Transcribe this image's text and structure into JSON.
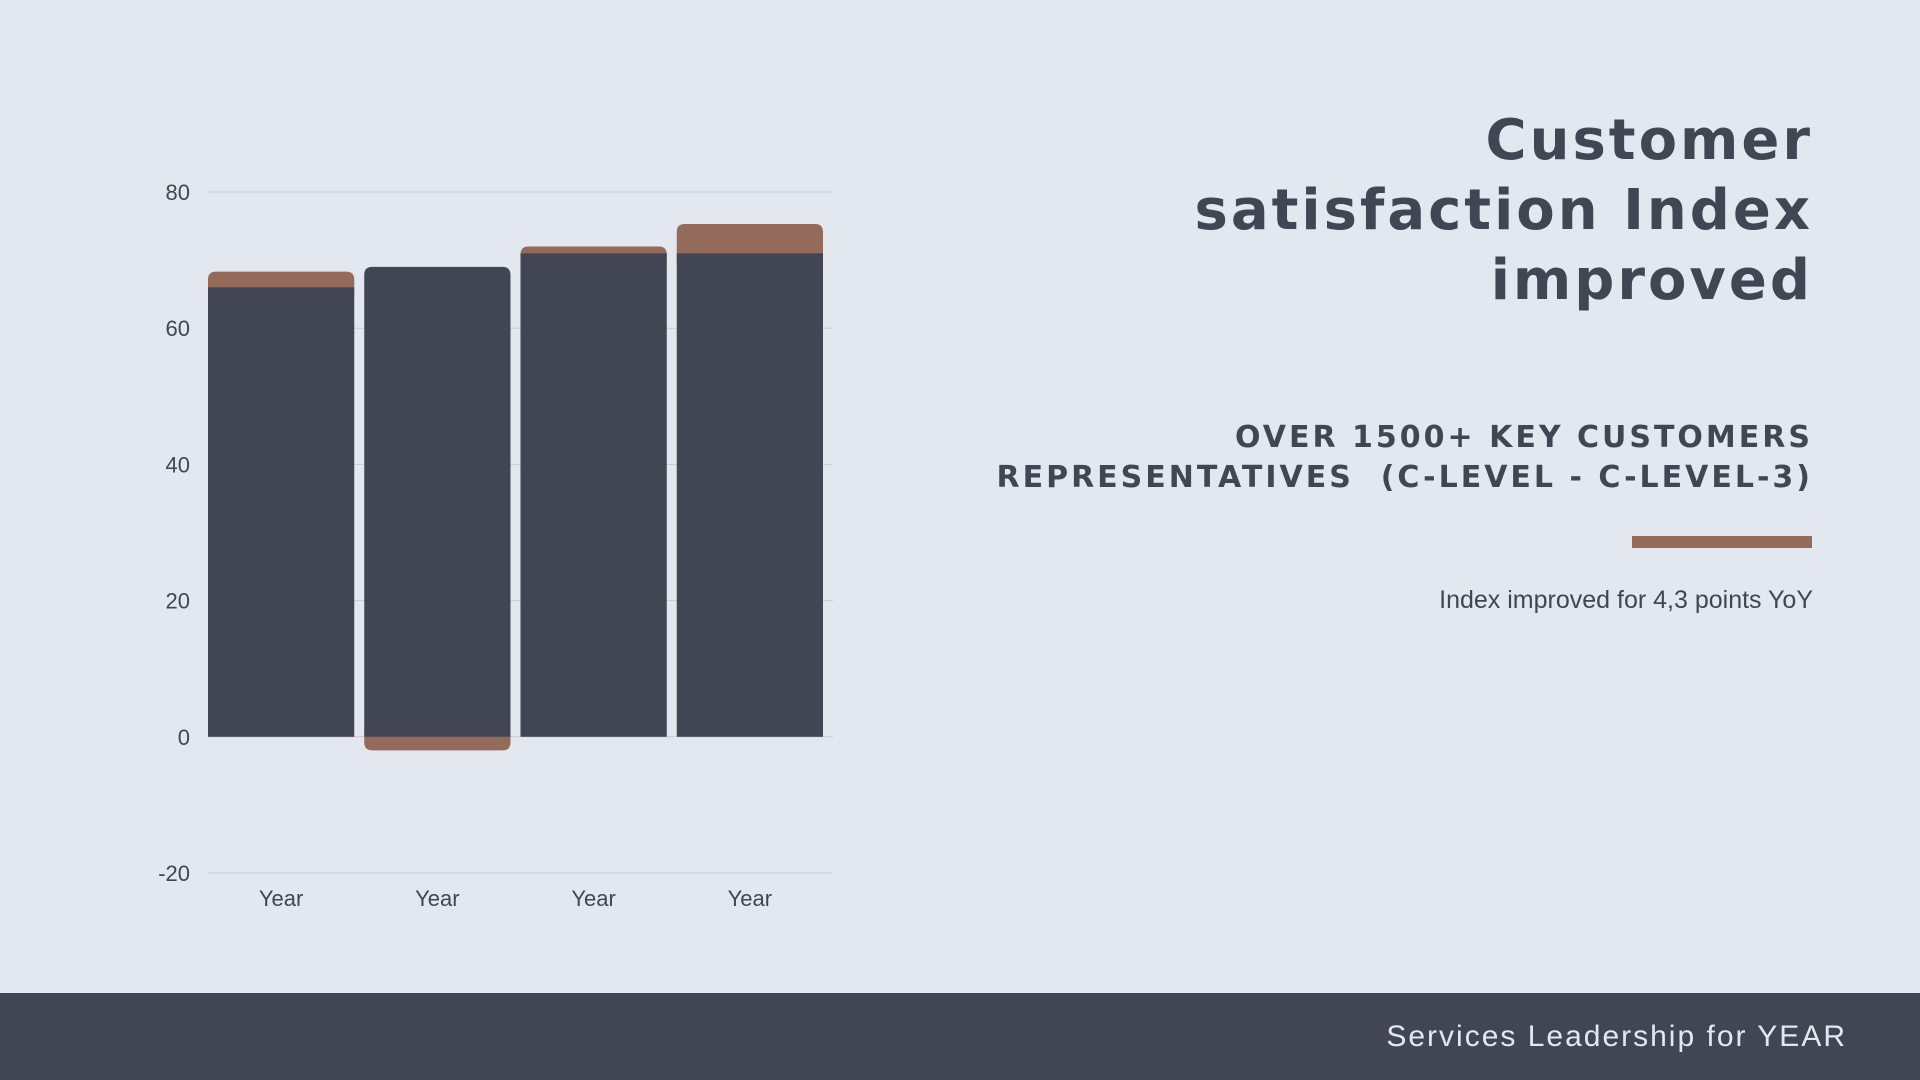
{
  "colors": {
    "background": "#e3e7f0",
    "primary": "#424654",
    "accent": "#946b5a",
    "gridline": "#c9ccd3"
  },
  "headline": [
    "Customer",
    "satisfaction Index",
    "improved"
  ],
  "subhead": [
    "OVER 1500+ KEY CUSTOMERS",
    "REPRESENTATIVES  (C-LEVEL - C-LEVEL-3)"
  ],
  "note": "Index improved for 4,3 points YoY",
  "footer": {
    "text": "Services Leadership for YEAR"
  },
  "chart_data": {
    "type": "bar",
    "stacked": true,
    "categories": [
      "Year",
      "Year",
      "Year",
      "Year"
    ],
    "series": [
      {
        "color": "#424654",
        "values": [
          66,
          69,
          71,
          71
        ]
      },
      {
        "color": "#946b5a",
        "values": [
          2.3,
          -2,
          1,
          4.3
        ]
      }
    ],
    "ylim": [
      -20,
      80
    ],
    "yticks": [
      -20,
      0,
      20,
      40,
      60,
      80
    ],
    "ytick_labels": [
      "-20",
      "0",
      "20",
      "40",
      "60",
      "80"
    ],
    "title": "",
    "xlabel": "",
    "ylabel": "",
    "grid": true,
    "legend": "none"
  }
}
